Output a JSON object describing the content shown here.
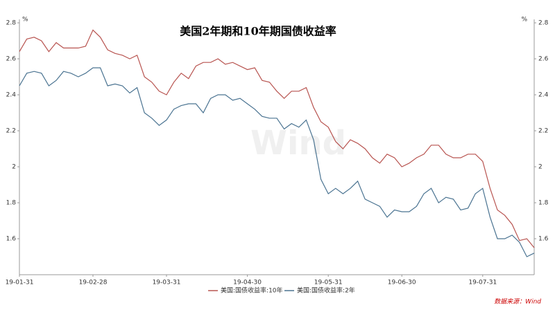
{
  "chart_data": {
    "type": "line",
    "title": "美国2年期和10年期国债收益率",
    "unit": "%",
    "watermark": "Wind",
    "source": "数据来源：Wind",
    "categories": [
      "19-01-31",
      null,
      null,
      null,
      null,
      null,
      null,
      null,
      null,
      null,
      "19-02-28",
      null,
      null,
      null,
      null,
      null,
      null,
      null,
      null,
      null,
      "19-03-31",
      null,
      null,
      null,
      null,
      null,
      null,
      null,
      null,
      null,
      null,
      "19-04-30",
      null,
      null,
      null,
      null,
      null,
      null,
      null,
      null,
      null,
      null,
      "19-05-31",
      null,
      null,
      null,
      null,
      null,
      null,
      null,
      null,
      null,
      "19-06-30",
      null,
      null,
      null,
      null,
      null,
      null,
      null,
      null,
      null,
      null,
      "19-07-31",
      null,
      null,
      null,
      null,
      null,
      null,
      null
    ],
    "series": [
      {
        "name": "美国:国债收益率:10年",
        "color": "#b85450",
        "values": [
          2.64,
          2.71,
          2.72,
          2.7,
          2.64,
          2.69,
          2.66,
          2.66,
          2.66,
          2.67,
          2.76,
          2.72,
          2.65,
          2.63,
          2.62,
          2.6,
          2.62,
          2.5,
          2.47,
          2.42,
          2.4,
          2.47,
          2.52,
          2.49,
          2.56,
          2.58,
          2.58,
          2.6,
          2.57,
          2.58,
          2.56,
          2.54,
          2.55,
          2.48,
          2.47,
          2.42,
          2.38,
          2.42,
          2.42,
          2.44,
          2.33,
          2.25,
          2.22,
          2.14,
          2.1,
          2.15,
          2.13,
          2.1,
          2.05,
          2.02,
          2.07,
          2.05,
          2.0,
          2.02,
          2.05,
          2.07,
          2.12,
          2.12,
          2.07,
          2.05,
          2.05,
          2.07,
          2.07,
          2.03,
          1.88,
          1.76,
          1.73,
          1.68,
          1.59,
          1.6,
          1.55
        ]
      },
      {
        "name": "美国:国债收益率:2年",
        "color": "#4a7391",
        "values": [
          2.45,
          2.52,
          2.53,
          2.52,
          2.45,
          2.48,
          2.53,
          2.52,
          2.5,
          2.52,
          2.55,
          2.55,
          2.45,
          2.46,
          2.45,
          2.41,
          2.44,
          2.3,
          2.27,
          2.23,
          2.26,
          2.32,
          2.34,
          2.35,
          2.35,
          2.3,
          2.38,
          2.4,
          2.4,
          2.37,
          2.38,
          2.35,
          2.32,
          2.28,
          2.27,
          2.27,
          2.21,
          2.24,
          2.22,
          2.26,
          2.15,
          1.93,
          1.85,
          1.88,
          1.85,
          1.88,
          1.92,
          1.82,
          1.8,
          1.78,
          1.72,
          1.76,
          1.75,
          1.75,
          1.78,
          1.85,
          1.88,
          1.8,
          1.83,
          1.82,
          1.76,
          1.77,
          1.85,
          1.88,
          1.72,
          1.6,
          1.6,
          1.62,
          1.58,
          1.5,
          1.52
        ]
      }
    ],
    "ylim": [
      1.4,
      2.8
    ],
    "yticks": [
      1.6,
      1.8,
      2.0,
      2.2,
      2.4,
      2.6,
      2.8
    ],
    "y2lim": [
      1.4,
      2.8
    ],
    "y2ticks": [
      1.6,
      1.8,
      2.0,
      2.2,
      2.4,
      2.6,
      2.8
    ],
    "legend": "bottom"
  }
}
